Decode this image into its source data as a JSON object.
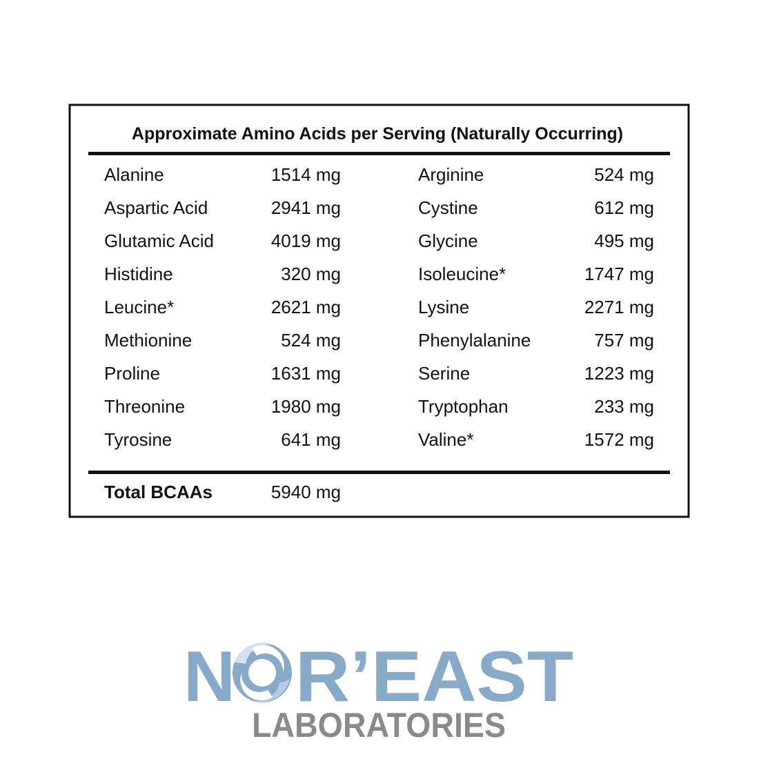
{
  "table": {
    "title": "Approximate Amino Acids per Serving (Naturally Occurring)",
    "rows": [
      [
        "Alanine",
        "1514 mg",
        "Arginine",
        "524 mg"
      ],
      [
        "Aspartic Acid",
        "2941 mg",
        "Cystine",
        "612 mg"
      ],
      [
        "Glutamic Acid",
        "4019 mg",
        "Glycine",
        "495 mg"
      ],
      [
        "Histidine",
        "320 mg",
        "Isoleucine*",
        "1747 mg"
      ],
      [
        "Leucine*",
        "2621 mg",
        "Lysine",
        "2271 mg"
      ],
      [
        "Methionine",
        "524 mg",
        "Phenylalanine",
        "757 mg"
      ],
      [
        "Proline",
        "1631 mg",
        "Serine",
        "1223 mg"
      ],
      [
        "Threonine",
        "1980 mg",
        "Tryptophan",
        "233 mg"
      ],
      [
        "Tyrosine",
        "641 mg",
        "Valine*",
        "1572 mg"
      ]
    ],
    "total": [
      "Total BCAAs",
      "5940 mg"
    ]
  },
  "logo": {
    "name_start": "N",
    "name_end": "R’EAST",
    "subtitle": "LABORATORIES"
  }
}
